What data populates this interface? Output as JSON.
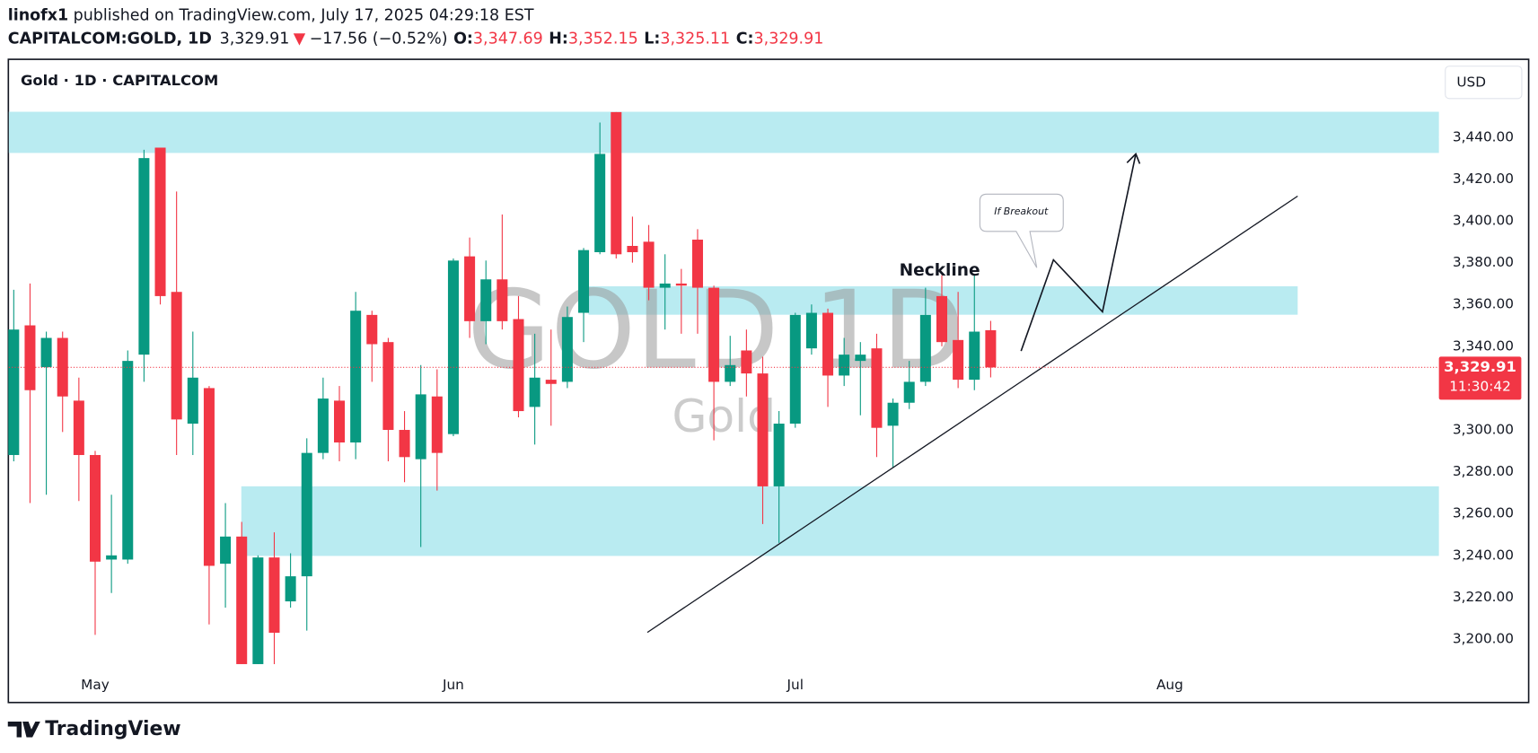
{
  "header": {
    "author": "linofx1",
    "published": "published on TradingView.com, July 17, 2025 04:29:18 EST",
    "symbol": "CAPITALCOM:GOLD, 1D",
    "last": "3,329.91",
    "arrow": "▼",
    "change": "−17.56 (−0.52%)",
    "o_label": "O:",
    "o": "3,347.69",
    "h_label": "H:",
    "h": "3,352.15",
    "l_label": "L:",
    "l": "3,325.11",
    "c_label": "C:",
    "c": "3,329.91"
  },
  "chart_data": {
    "type": "candlestick",
    "title": "Gold · 1D · CAPITALCOM",
    "currency": "USD",
    "watermark": "GOLD 1D",
    "watermark_sub": "Gold",
    "annotations": {
      "neckline": "Neckline",
      "callout": "If Breakout"
    },
    "up_color": "#089981",
    "down_color": "#f23645",
    "categories": [
      null,
      null,
      null,
      null,
      null,
      "May",
      null,
      null,
      null,
      null,
      null,
      null,
      null,
      null,
      null,
      null,
      null,
      null,
      null,
      null,
      null,
      null,
      null,
      null,
      null,
      null,
      null,
      "Jun",
      null,
      null,
      null,
      null,
      null,
      null,
      null,
      null,
      null,
      null,
      null,
      null,
      null,
      null,
      null,
      null,
      null,
      null,
      null,
      null,
      "Jul",
      null,
      null,
      null,
      null,
      null,
      null,
      null,
      null,
      null,
      null,
      null,
      null,
      null,
      null,
      null,
      null,
      null,
      null,
      null,
      null,
      null,
      null,
      "Aug",
      null,
      null,
      null,
      null,
      null,
      null,
      null,
      null,
      null,
      null,
      null,
      null,
      null,
      null,
      null,
      null
    ],
    "open": [
      3288,
      3350,
      3330,
      3344,
      3314,
      3288,
      3238,
      3238,
      3336,
      3435,
      3366,
      3303,
      3320,
      3236,
      3249,
      3188,
      3239,
      3218,
      3230,
      3289,
      3314,
      3294,
      3355,
      3342,
      3300,
      3286,
      3316,
      3298,
      3383,
      3352,
      3372,
      3353,
      3311,
      3324,
      3323,
      3356,
      3385,
      3452,
      3388,
      3390,
      3368,
      3370,
      3391,
      3368,
      3323,
      3338,
      3327,
      3273,
      3303,
      3339,
      3356,
      3326,
      3333,
      3339,
      3302,
      3313,
      3323,
      3364,
      3343,
      3324,
      3347.69,
      null,
      null,
      null,
      null,
      null,
      null,
      null,
      null,
      null,
      null,
      null,
      null,
      null,
      null,
      null,
      null,
      null,
      null,
      null,
      null,
      null,
      null,
      null,
      null,
      null,
      null,
      null
    ],
    "high": [
      3367,
      3370,
      3347,
      3347,
      3325,
      3290,
      3269,
      3338,
      3434,
      3435,
      3414,
      3347,
      3321,
      3265,
      3256,
      3240,
      3251,
      3241,
      3296,
      3325,
      3321,
      3366,
      3357,
      3344,
      3309,
      3331,
      3329,
      3382,
      3392,
      3381,
      3403,
      3364,
      3346,
      3348,
      3359,
      3387,
      3447,
      3452,
      3402,
      3398,
      3384,
      3377,
      3396,
      3369,
      3345,
      3348,
      3335,
      3309,
      3356,
      3360,
      3358,
      3344,
      3342,
      3346,
      3315,
      3333,
      3368,
      3374,
      3366,
      3374,
      3352.15,
      null,
      null,
      null,
      null,
      null,
      null,
      null,
      null,
      null,
      null,
      null,
      null,
      null,
      null,
      null,
      null,
      null,
      null,
      null,
      null,
      null,
      null,
      null,
      null,
      null,
      null,
      null
    ],
    "low": [
      3285,
      3265,
      3269,
      3299,
      3266,
      3202,
      3222,
      3236,
      3323,
      3360,
      3288,
      3288,
      3207,
      3215,
      3188,
      3188,
      3188,
      3215,
      3204,
      3286,
      3285,
      3286,
      3323,
      3285,
      3275,
      3244,
      3271,
      3297,
      3344,
      3341,
      3348,
      3306,
      3293,
      3302,
      3320,
      3342,
      3384,
      3382,
      3380,
      3362,
      3348,
      3346,
      3346,
      3295,
      3321,
      3316,
      3255,
      3246,
      3301,
      3336,
      3311,
      3321,
      3307,
      3287,
      3282,
      3310,
      3321,
      3340,
      3320,
      3319,
      3325.11,
      null,
      null,
      null,
      null,
      null,
      null,
      null,
      null,
      null,
      null,
      null,
      null,
      null,
      null,
      null,
      null,
      null,
      null,
      null,
      null,
      null,
      null,
      null,
      null,
      null,
      null,
      null
    ],
    "close": [
      3348,
      3319,
      3344,
      3316,
      3288,
      3237,
      3240,
      3333,
      3430,
      3364,
      3305,
      3325,
      3235,
      3249,
      3188,
      3239,
      3203,
      3230,
      3289,
      3315,
      3294,
      3357,
      3341,
      3300,
      3287,
      3317,
      3289,
      3381,
      3352,
      3372,
      3352,
      3309,
      3325,
      3322,
      3354,
      3386,
      3432,
      3384,
      3385,
      3368,
      3370,
      3369,
      3368,
      3323,
      3331,
      3327,
      3273,
      3303,
      3355,
      3356,
      3326,
      3336,
      3336,
      3301,
      3313,
      3323,
      3355,
      3342,
      3324,
      3347,
      3329.91,
      null,
      null,
      null,
      null,
      null,
      null,
      null,
      null,
      null,
      null,
      null,
      null,
      null,
      null,
      null,
      null,
      null,
      null,
      null,
      null,
      null,
      null,
      null,
      null,
      null,
      null,
      null
    ],
    "last_price": {
      "value": 3329.91,
      "label": "3,329.91"
    },
    "countdown": "11:30:42",
    "ylim": [
      3183,
      3477
    ],
    "yticks": [
      {
        "value": 3200,
        "label": "3,200.00"
      },
      {
        "value": 3220,
        "label": "3,220.00"
      },
      {
        "value": 3240,
        "label": "3,240.00"
      },
      {
        "value": 3260,
        "label": "3,260.00"
      },
      {
        "value": 3280,
        "label": "3,280.00"
      },
      {
        "value": 3300,
        "label": "3,300.00"
      },
      {
        "value": 3320,
        "label": "3,320.00"
      },
      {
        "value": 3340,
        "label": "3,340.00"
      },
      {
        "value": 3360,
        "label": "3,360.00"
      },
      {
        "value": 3380,
        "label": "3,380.00"
      },
      {
        "value": 3400,
        "label": "3,400.00"
      },
      {
        "value": 3420,
        "label": "3,420.00"
      },
      {
        "value": 3440,
        "label": "3,440.00"
      }
    ],
    "grid": false
  },
  "footer": {
    "brand": "TradingView"
  }
}
